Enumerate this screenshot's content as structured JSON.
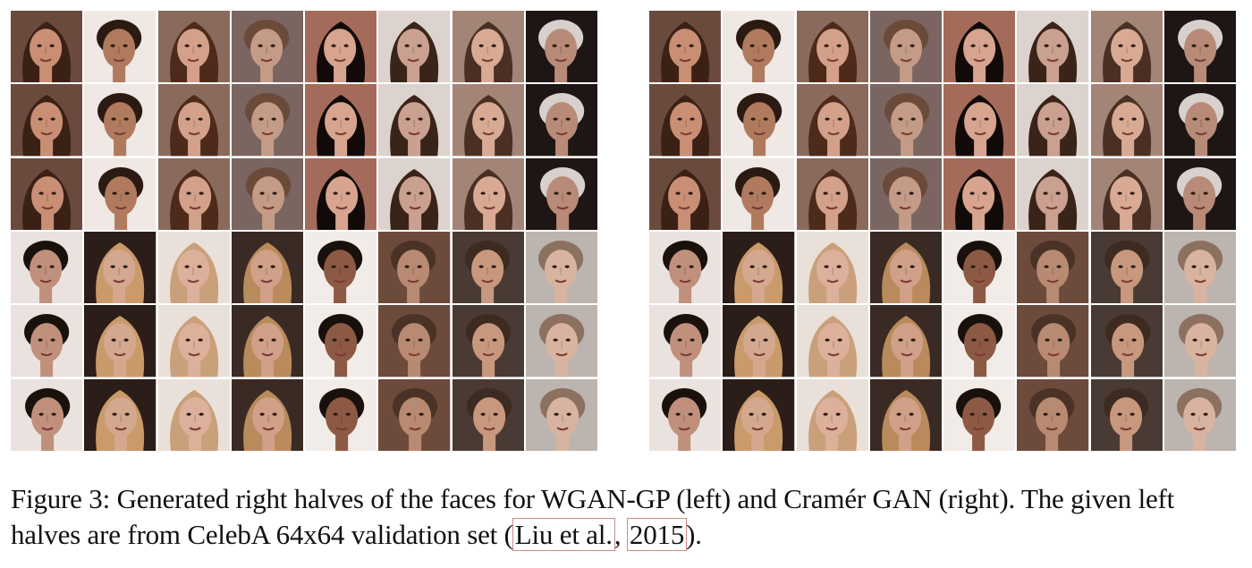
{
  "figure": {
    "label": "Figure 3:",
    "caption_text": "Generated right halves of the faces for WGAN-GP (left) and Cramér GAN (right). The given left halves are from CelebA 64x64 validation set (",
    "citation_authors": "Liu et al.",
    "citation_sep": ", ",
    "citation_year": "2015",
    "caption_end": ")."
  },
  "panels": [
    {
      "id": "wgan-gp"
    },
    {
      "id": "cramer-gan"
    }
  ],
  "grid": {
    "rows": 6,
    "cols": 8
  },
  "faces": [
    {
      "hair": "#3b2016",
      "skin": "#c98f74",
      "bg": "#6b4a3e",
      "long": true
    },
    {
      "hair": "#2a1a12",
      "skin": "#b07a5e",
      "bg": "#efe8e4",
      "long": false
    },
    {
      "hair": "#4d2a1a",
      "skin": "#d3a08a",
      "bg": "#8a6a5c",
      "long": true
    },
    {
      "hair": "#6b4a3a",
      "skin": "#c49b86",
      "bg": "#7a6560",
      "long": false
    },
    {
      "hair": "#120a08",
      "skin": "#d6a48f",
      "bg": "#a56b5a",
      "long": true
    },
    {
      "hair": "#3a2419",
      "skin": "#caa090",
      "bg": "#dcd3cf",
      "long": true
    },
    {
      "hair": "#4a3024",
      "skin": "#d8aa94",
      "bg": "#a38578",
      "long": true
    },
    {
      "hair": "#d8d0cc",
      "skin": "#b88a78",
      "bg": "#1e1614",
      "long": false
    },
    {
      "hair": "#1a110c",
      "skin": "#c0907c",
      "bg": "#eae2de",
      "long": false
    },
    {
      "hair": "#c99a6a",
      "skin": "#d4a88e",
      "bg": "#2b1d18",
      "long": true
    },
    {
      "hair": "#c9a07a",
      "skin": "#dcb09a",
      "bg": "#e9e0da",
      "long": true
    },
    {
      "hair": "#b88a5c",
      "skin": "#d0a088",
      "bg": "#3a2a24",
      "long": true
    },
    {
      "hair": "#1a100b",
      "skin": "#8c5a44",
      "bg": "#f2ece8",
      "long": false
    },
    {
      "hair": "#4a3226",
      "skin": "#b98a72",
      "bg": "#6c4a3c",
      "long": false
    },
    {
      "hair": "#3d2a20",
      "skin": "#c8987e",
      "bg": "#4a3a34",
      "long": false
    },
    {
      "hair": "#8c7060",
      "skin": "#d8b4a0",
      "bg": "#bcb4ae",
      "long": false
    }
  ]
}
